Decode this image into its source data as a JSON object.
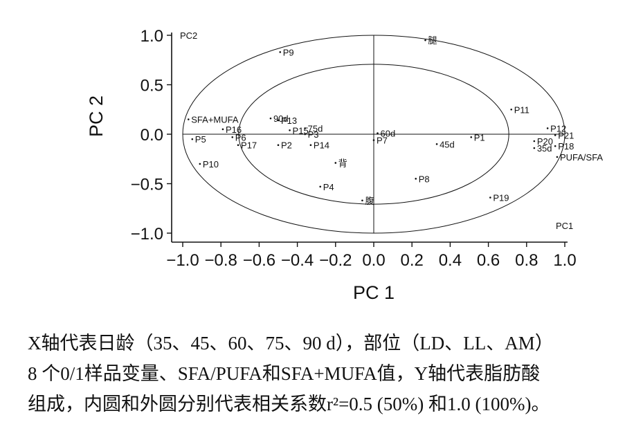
{
  "chart_data": {
    "type": "scatter",
    "xlabel": "PC 1",
    "ylabel": "PC 2",
    "xlim": [
      -1.0,
      1.0
    ],
    "ylim": [
      -1.0,
      1.0
    ],
    "xticks": [
      "−1.0",
      "−0.8",
      "−0.6",
      "−0.4",
      "−0.2",
      "0.0",
      "0.2",
      "0.4",
      "0.6",
      "0.8",
      "1.0"
    ],
    "yticks": [
      "1.0",
      "0.5",
      "0.0",
      "−0.5",
      "−1.0"
    ],
    "axis_end_labels": {
      "x": "PC1",
      "y": "PC2"
    },
    "circles": [
      {
        "r": 1.0
      },
      {
        "r": 0.7071
      }
    ],
    "points": [
      {
        "label": "腿",
        "x": 0.27,
        "y": 0.95
      },
      {
        "label": "P9",
        "x": -0.49,
        "y": 0.83
      },
      {
        "label": "P11",
        "x": 0.72,
        "y": 0.25
      },
      {
        "label": "SFA+MUFA",
        "x": -0.97,
        "y": 0.15
      },
      {
        "label": "90d",
        "x": -0.54,
        "y": 0.16
      },
      {
        "label": "P13",
        "x": -0.5,
        "y": 0.14
      },
      {
        "label": "75d",
        "x": -0.36,
        "y": 0.06
      },
      {
        "label": "P15",
        "x": -0.44,
        "y": 0.04
      },
      {
        "label": "P16",
        "x": -0.79,
        "y": 0.05
      },
      {
        "label": "P3",
        "x": -0.36,
        "y": 0.0
      },
      {
        "label": "60d",
        "x": 0.02,
        "y": 0.01
      },
      {
        "label": "P12",
        "x": 0.91,
        "y": 0.06
      },
      {
        "label": "P21",
        "x": 0.95,
        "y": -0.01
      },
      {
        "label": "P6",
        "x": -0.74,
        "y": -0.03
      },
      {
        "label": "P5",
        "x": -0.95,
        "y": -0.05
      },
      {
        "label": "P1",
        "x": 0.51,
        "y": -0.03
      },
      {
        "label": "P7",
        "x": 0.0,
        "y": -0.06
      },
      {
        "label": "45d",
        "x": 0.33,
        "y": -0.1
      },
      {
        "label": "P20",
        "x": 0.84,
        "y": -0.07
      },
      {
        "label": "P18",
        "x": 0.95,
        "y": -0.12
      },
      {
        "label": "P17",
        "x": -0.71,
        "y": -0.11
      },
      {
        "label": "P2",
        "x": -0.5,
        "y": -0.11
      },
      {
        "label": "P14",
        "x": -0.33,
        "y": -0.11
      },
      {
        "label": "35d",
        "x": 0.84,
        "y": -0.14
      },
      {
        "label": "PUFA/SFA",
        "x": 0.96,
        "y": -0.23
      },
      {
        "label": "P10",
        "x": -0.91,
        "y": -0.3
      },
      {
        "label": "背",
        "x": -0.2,
        "y": -0.29
      },
      {
        "label": "P8",
        "x": 0.22,
        "y": -0.45
      },
      {
        "label": "P4",
        "x": -0.28,
        "y": -0.53
      },
      {
        "label": "P19",
        "x": 0.61,
        "y": -0.64
      },
      {
        "label": "腹",
        "x": -0.06,
        "y": -0.67
      }
    ]
  },
  "caption": {
    "line1": "X轴代表日龄（35、45、60、75、90 d），部位（LD、LL、AM）",
    "line2": "8 个0/1样品变量、SFA/PUFA和SFA+MUFA值，Y轴代表脂肪酸",
    "line3": "组成，内圆和外圆分别代表相关系数r²=0.5 (50%) 和1.0 (100%)。"
  }
}
